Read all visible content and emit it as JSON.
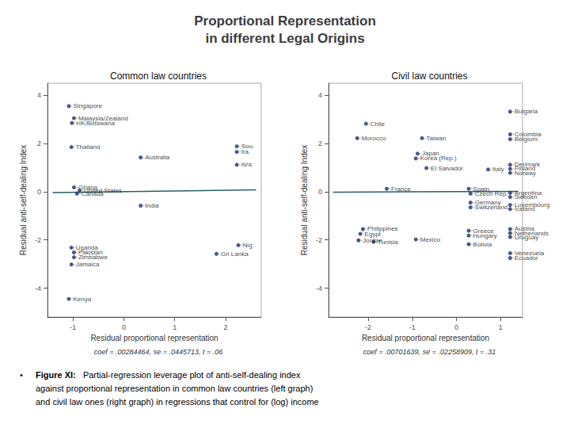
{
  "title": "Proportional Representation\nin different Legal Origins",
  "caption": {
    "bullet": "•",
    "bold": "Figure XI:",
    "lines": [
      "Partial-regression leverage plot of anti-self-dealing index",
      "against proportional representation in common law countries (left graph)",
      "and civil law ones (right graph) in regressions that control for (log) income"
    ]
  },
  "chart_data": [
    {
      "type": "scatter",
      "title": "Common law countries",
      "x_label": "Residual proportional representation",
      "y_label": "Residual anti-self-dealing Index",
      "annotation": "coef = .00284464, se = .0445713, t = .06",
      "xlim": [
        -1.5,
        2.7
      ],
      "ylim": [
        -5.2,
        4.5
      ],
      "xticks": [
        -1,
        0,
        1,
        2
      ],
      "yticks": [
        -4,
        -2,
        0,
        2,
        4
      ],
      "grid": false,
      "series": [
        {
          "type": "line",
          "color": "#2a6060",
          "x": [
            -1.4,
            2.6
          ],
          "values": [
            -0.04,
            0.074
          ]
        },
        {
          "type": "scatter",
          "color": "#1a2e6b",
          "x": [
            -1.08,
            -0.98,
            -1.02,
            -1.03,
            0.33,
            2.22,
            2.22,
            2.22,
            -0.98,
            -0.87,
            -0.92,
            0.33,
            -1.03,
            -0.98,
            -0.98,
            -1.03,
            1.82,
            2.25,
            -1.08
          ],
          "values": [
            3.55,
            3.05,
            2.85,
            1.85,
            1.42,
            1.88,
            1.65,
            1.12,
            0.18,
            0.05,
            -0.08,
            -0.58,
            -2.32,
            -2.52,
            -2.72,
            -3.02,
            -2.58,
            -2.22,
            -4.45
          ],
          "labels": [
            "Singapore",
            "Malaysia/Zealand",
            "HK/Botswana",
            "Thailand",
            "Australia",
            "Sou.",
            "Ira.",
            "Isra",
            "Ghana",
            "United States",
            "Canada",
            "India",
            "Uganda",
            "Pakistan",
            "Zimbabwe",
            "Jamaica",
            "Gri Lanka",
            "Nig",
            "Kenya"
          ]
        }
      ]
    },
    {
      "type": "scatter",
      "title": "Civil law countries",
      "x_label": "Residual proportional representation",
      "y_label": "Residual anti-self-dealing Index",
      "annotation": "coef = .00701639, se = .02258909, t = .31",
      "xlim": [
        -2.9,
        1.5
      ],
      "ylim": [
        -5.2,
        4.5
      ],
      "xticks": [
        -2,
        -1,
        0,
        1
      ],
      "yticks": [
        -4,
        -2,
        0,
        2,
        4
      ],
      "grid": false,
      "series": [
        {
          "type": "line",
          "color": "#2a6060",
          "x": [
            -2.8,
            1.4
          ],
          "values": [
            -0.02,
            0.01
          ]
        },
        {
          "type": "scatter",
          "color": "#1a2e6b",
          "x": [
            -2.05,
            -2.25,
            -0.78,
            1.22,
            1.22,
            1.22,
            -0.88,
            -0.92,
            -0.68,
            0.72,
            1.22,
            1.22,
            1.22,
            -1.58,
            0.28,
            0.32,
            1.22,
            1.22,
            0.32,
            0.32,
            1.22,
            1.22,
            -2.12,
            -2.18,
            0.28,
            0.28,
            1.22,
            1.22,
            1.22,
            -2.22,
            -1.88,
            -0.92,
            0.28,
            1.22,
            1.22
          ],
          "values": [
            2.82,
            2.22,
            2.22,
            3.32,
            2.38,
            2.18,
            1.58,
            1.38,
            0.98,
            0.92,
            1.12,
            0.95,
            0.78,
            0.12,
            0.12,
            -0.08,
            -0.05,
            -0.22,
            -0.45,
            -0.65,
            -0.55,
            -0.72,
            -1.55,
            -1.75,
            -1.62,
            -1.82,
            -1.55,
            -1.72,
            -1.88,
            -2.02,
            -2.08,
            -1.98,
            -2.18,
            -2.55,
            -2.75
          ],
          "labels": [
            "Chile",
            "Morocco",
            "Taiwan",
            "Bulgaria",
            "Colombia",
            "Belgium",
            "Japan",
            "Korea (Rep.)",
            "El Salvador",
            "Italy",
            "Denmark",
            "Finland",
            "Norway",
            "France",
            "Spain",
            "Czech Rep.",
            "Argentina",
            "Sweden",
            "Germany",
            "Switzerland",
            "Luxembourg",
            "Iceland",
            "Philippines",
            "Egypt",
            "Greece",
            "Hungary",
            "Austria",
            "Netherlands",
            "Uruguay",
            "Jordan",
            "Tunisia",
            "Mexico",
            "Bolivia",
            "Venezuela",
            "Ecuador"
          ]
        }
      ]
    }
  ]
}
